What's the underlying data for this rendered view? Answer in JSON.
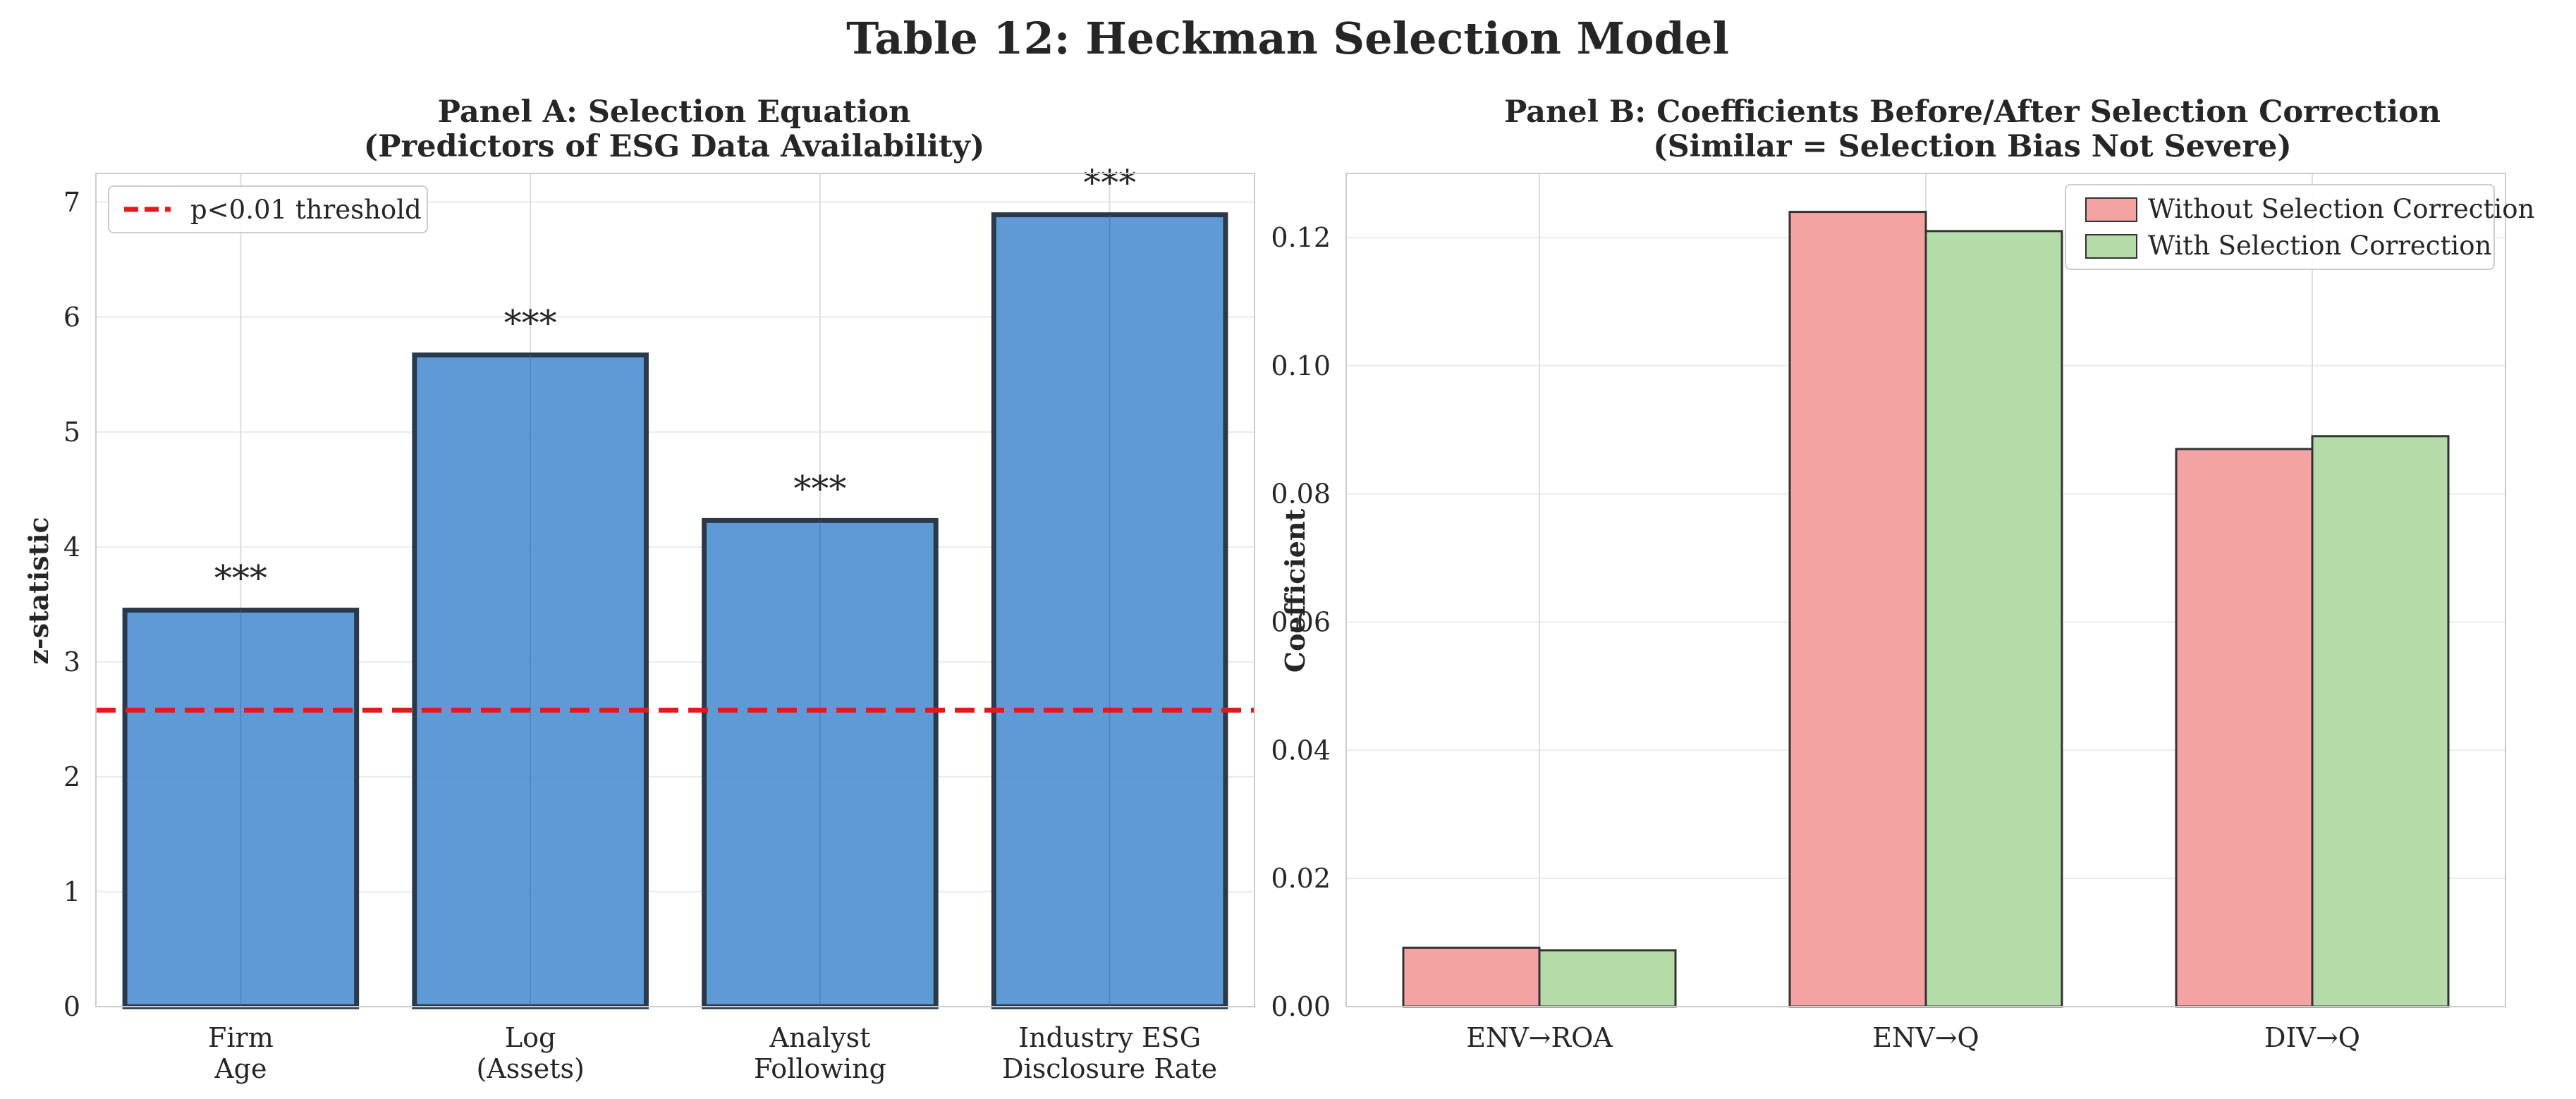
{
  "figure_title": "Table 12: Heckman Selection Model",
  "chart_data": [
    {
      "type": "bar",
      "title": "Panel A: Selection Equation",
      "subtitle": "(Predictors of ESG Data Availability)",
      "xlabel": "",
      "ylabel": "z-statistic",
      "categories": [
        [
          "Firm",
          "Age"
        ],
        [
          "Log",
          "(Assets)"
        ],
        [
          "Analyst",
          "Following"
        ],
        [
          "Industry ESG",
          "Disclosure Rate"
        ]
      ],
      "values": [
        3.45,
        5.67,
        4.23,
        6.89
      ],
      "annotations": [
        "***",
        "***",
        "***",
        "***"
      ],
      "ylim": [
        0,
        7.25
      ],
      "yticks": [
        "0",
        "1",
        "2",
        "3",
        "4",
        "5",
        "6",
        "7"
      ],
      "threshold": {
        "value": 2.58,
        "label": "p<0.01 threshold",
        "color": "#e31a1c"
      },
      "bar_color": "#4a8cd0",
      "grid": true,
      "legend_position": "top-left"
    },
    {
      "type": "bar",
      "title": "Panel B: Coefficients Before/After Selection Correction",
      "subtitle": "(Similar = Selection Bias Not Severe)",
      "xlabel": "",
      "ylabel": "Coefficient",
      "categories": [
        "ENV→ROA",
        "ENV→Q",
        "DIV→Q"
      ],
      "series": [
        {
          "name": "Without Selection Correction",
          "values": [
            0.0092,
            0.124,
            0.087
          ],
          "color": "#f4a3a3"
        },
        {
          "name": "With Selection Correction",
          "values": [
            0.0088,
            0.121,
            0.089
          ],
          "color": "#b5dba8"
        }
      ],
      "ylim": [
        0,
        0.13
      ],
      "yticks": [
        "0.00",
        "0.02",
        "0.04",
        "0.06",
        "0.08",
        "0.10",
        "0.12"
      ],
      "grid": true,
      "legend_position": "top-right"
    }
  ]
}
